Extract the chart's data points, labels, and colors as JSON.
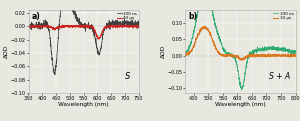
{
  "panel_a": {
    "title": "a)",
    "xlabel": "Wavelength (nm)",
    "ylabel": "ΔOD",
    "xlim": [
      350,
      750
    ],
    "ylim": [
      -0.1,
      0.025
    ],
    "yticks": [
      -0.1,
      -0.08,
      -0.06,
      -0.04,
      -0.02,
      0.0,
      0.02
    ],
    "xticks": [
      350,
      400,
      450,
      500,
      550,
      600,
      650,
      700,
      750
    ],
    "label_ns": "100 ns",
    "label_us": "40 μs",
    "color_ns": "#404040",
    "color_us": "#cc2222",
    "annotation": "S"
  },
  "panel_b": {
    "title": "b)",
    "xlabel": "Wavelength (nm)",
    "ylabel": "ΔOD",
    "xlim": [
      420,
      800
    ],
    "ylim": [
      -0.115,
      0.14
    ],
    "yticks": [
      -0.1,
      -0.05,
      0.0,
      0.05,
      0.1
    ],
    "xticks": [
      450,
      500,
      550,
      600,
      650,
      700,
      750,
      800
    ],
    "label_ns": "100 ns",
    "label_us": "10 μs",
    "color_ns": "#2eab70",
    "color_us": "#d97820",
    "annotation": "S + A"
  },
  "background_color": "#e8e8e0",
  "grid_color": "#ffffff"
}
